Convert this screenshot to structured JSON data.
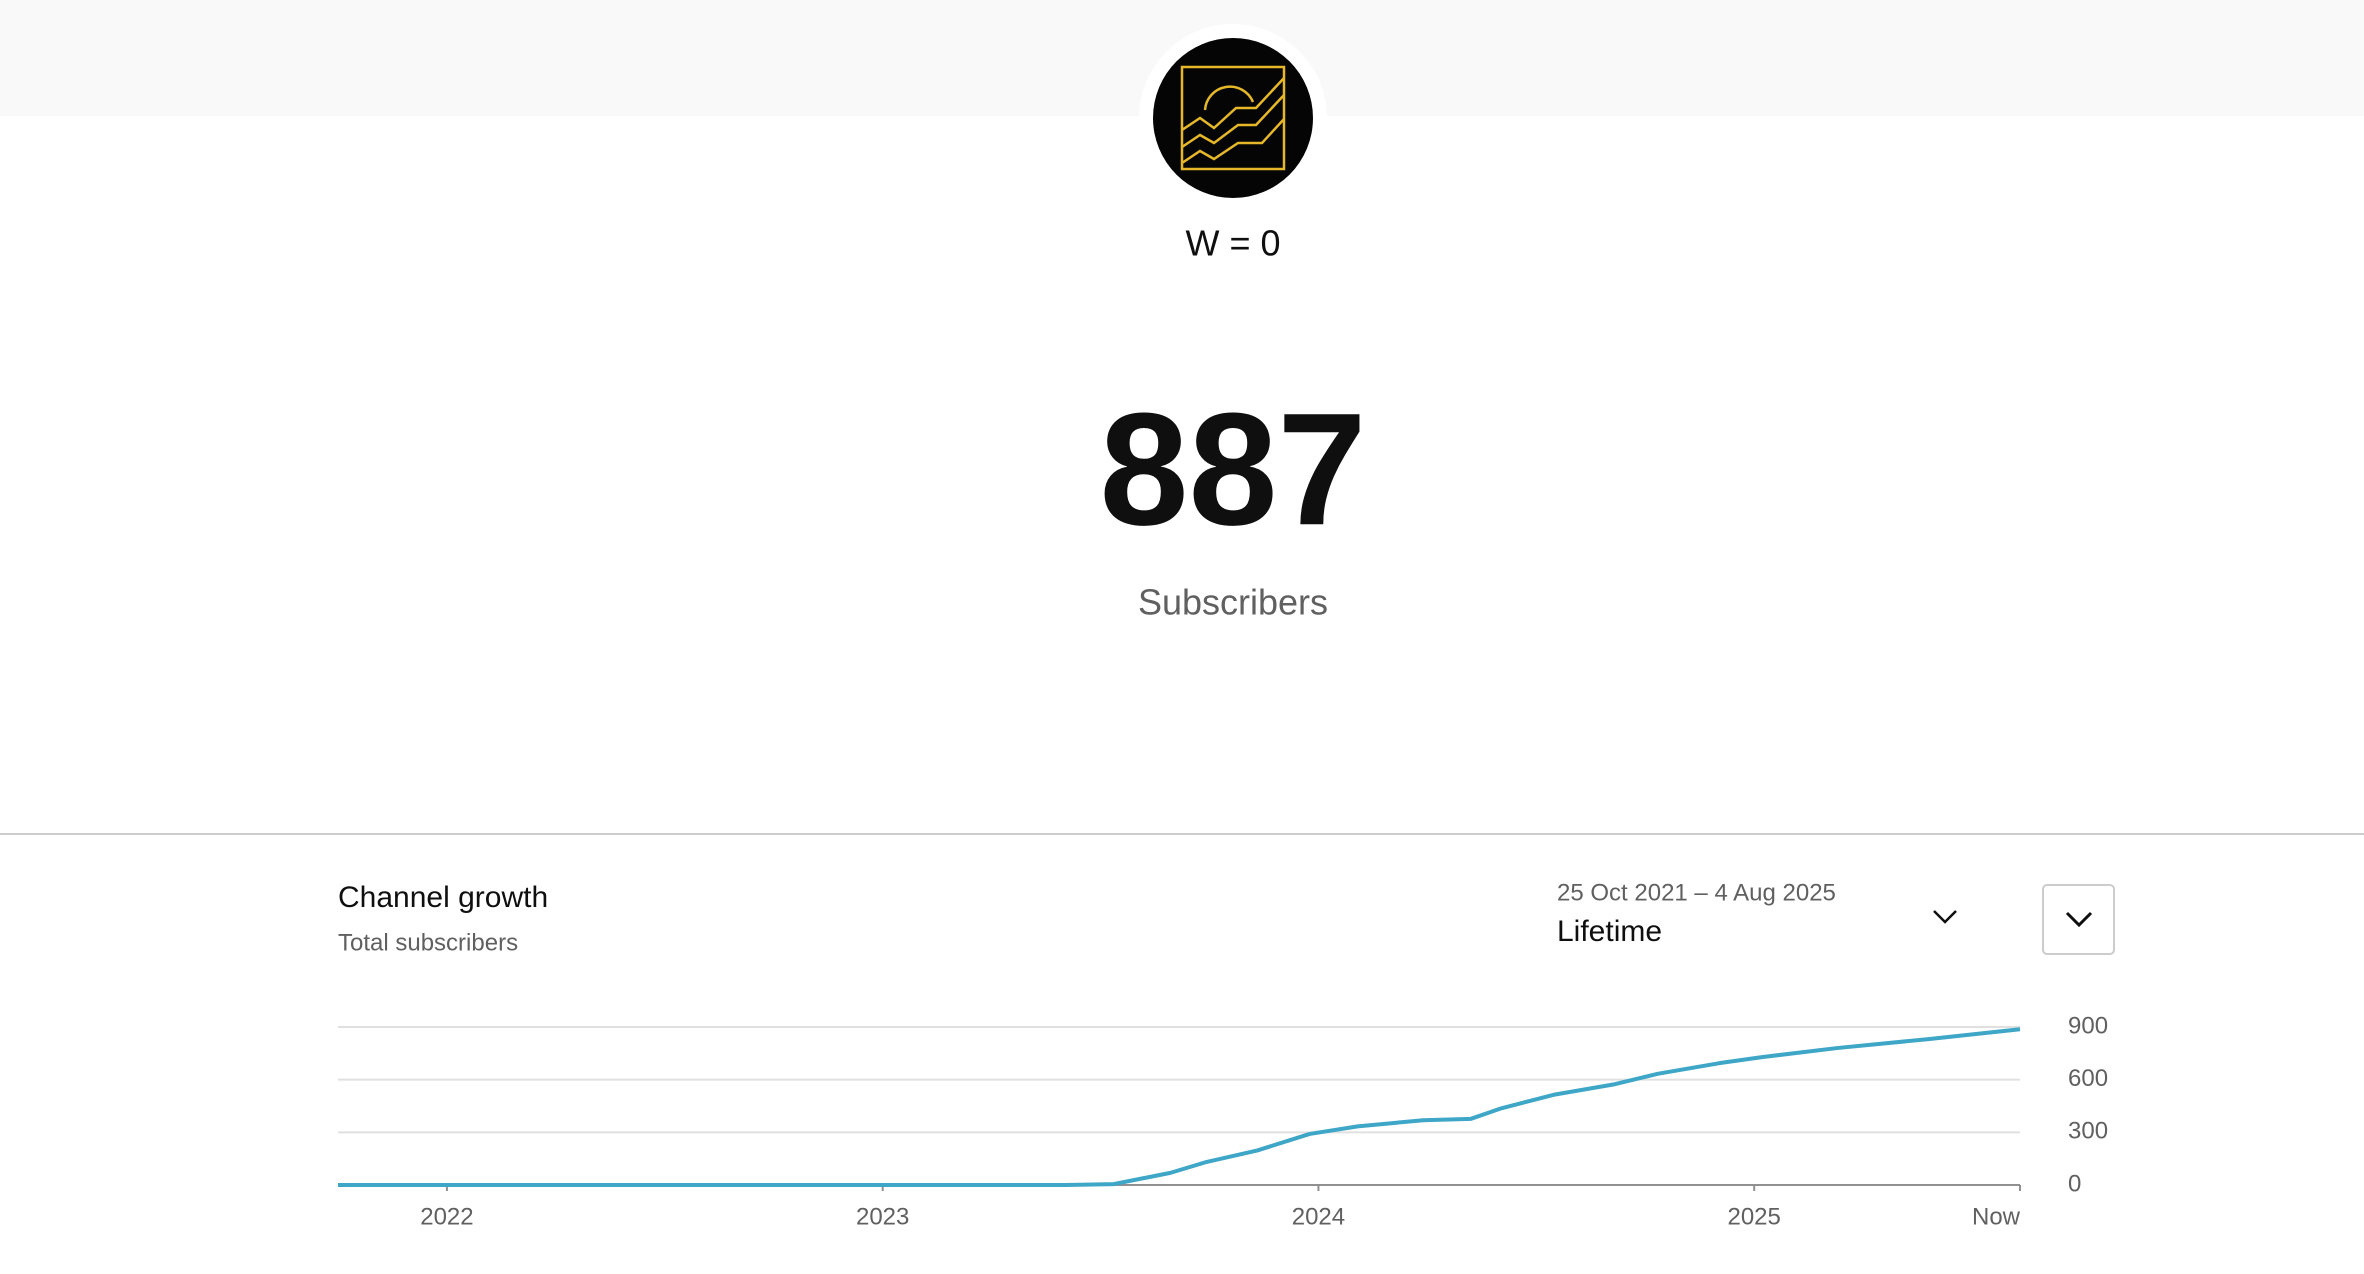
{
  "channel": {
    "name": "W = 0",
    "subscriber_count": "887",
    "subscriber_label": "Subscribers"
  },
  "panel": {
    "title": "Channel growth",
    "subtitle": "Total subscribers",
    "date_range": "25 Oct 2021 – 4 Aug 2025",
    "period": "Lifetime"
  },
  "chart_data": {
    "type": "line",
    "x": [
      2021.75,
      2023.42,
      2023.53,
      2023.66,
      2023.74,
      2023.86,
      2023.98,
      2024.09,
      2024.24,
      2024.35,
      2024.42,
      2024.54,
      2024.68,
      2024.78,
      2024.92,
      2025.02,
      2025.19,
      2025.4,
      2025.61
    ],
    "series": [
      {
        "color": "#3ea6c7",
        "values": [
          0,
          0,
          5,
          69,
          129,
          197,
          291,
          334,
          369,
          377,
          437,
          514,
          574,
          634,
          694,
          729,
          780,
          831,
          887
        ]
      }
    ],
    "xlim": [
      2021.75,
      2025.61
    ],
    "xticks": [
      2022,
      2023,
      2024,
      2025,
      {
        "value": 2025.61,
        "label": "Now"
      }
    ],
    "ylim": [
      0,
      900
    ],
    "yticks": [
      0,
      300,
      600,
      900
    ],
    "grid": true
  }
}
